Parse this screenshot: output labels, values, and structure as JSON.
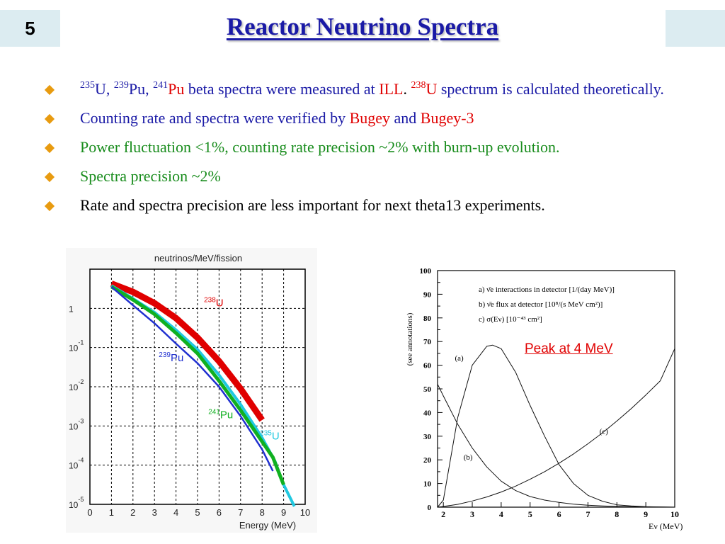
{
  "slide": {
    "number": "5",
    "title": "Reactor Neutrino Spectra"
  },
  "bullets": {
    "b1": {
      "sup1": "235",
      "t1": "U, ",
      "sup2": "239",
      "t2": "Pu, ",
      "sup3": "241",
      "t3": "Pu",
      "t4": " beta spectra were measured at ",
      "ill": "ILL",
      "t5": ". ",
      "sup4": "238",
      "t6": "U",
      "t7": " spectrum is calculated theoretically."
    },
    "b2": {
      "t1": "Counting rate and spectra were verified by ",
      "bugey": "Bugey",
      "t2": " and ",
      "bugey3": "Bugey-3"
    },
    "b3": {
      "text": "Power fluctuation <1%, counting rate precision ~2% with burn-up evolution."
    },
    "b4": {
      "text": "Spectra precision ~2%"
    },
    "b5": {
      "text": "Rate and spectra precision are less important for next theta13 experiments."
    }
  },
  "left_chart": {
    "title": "neutrinos/MeV/fission",
    "xlabel": "Energy (MeV)",
    "y_ticks": [
      {
        "base": "1",
        "exp": ""
      },
      {
        "base": "10",
        "exp": "-1"
      },
      {
        "base": "10",
        "exp": "-2"
      },
      {
        "base": "10",
        "exp": "-3"
      },
      {
        "base": "10",
        "exp": "-4"
      },
      {
        "base": "10",
        "exp": "-5"
      }
    ],
    "x_ticks": [
      "0",
      "1",
      "2",
      "3",
      "4",
      "5",
      "6",
      "7",
      "8",
      "9",
      "10"
    ],
    "labels": [
      {
        "sup": "238",
        "sym": "U",
        "color": "#e00000"
      },
      {
        "sup": "239",
        "sym": "Pu",
        "color": "#2030d0"
      },
      {
        "sup": "241",
        "sym": "Pu",
        "color": "#10b020"
      },
      {
        "sup": "235",
        "sym": "U",
        "color": "#20c8e0"
      }
    ]
  },
  "right_chart": {
    "ylabel": "(see annotations)",
    "xlabel": "Eν (MeV)",
    "y_ticks": [
      "0",
      "10",
      "20",
      "30",
      "40",
      "50",
      "60",
      "70",
      "80",
      "90",
      "100"
    ],
    "x_ticks": [
      "2",
      "3",
      "4",
      "5",
      "6",
      "7",
      "8",
      "9",
      "10"
    ],
    "legend": [
      "a) ν̄e interactions in detector [1/(day MeV)]",
      "b) ν̄e flux at detector [10⁸/(s MeV cm²)]",
      "c) σ(Eν) [10⁻⁴³ cm²]"
    ],
    "curve_labels": [
      "(a)",
      "(b)",
      "(c)"
    ],
    "annotation": "Peak at 4 MeV"
  },
  "chart_data": [
    {
      "type": "line",
      "title": "neutrinos/MeV/fission",
      "xlabel": "Energy (MeV)",
      "ylabel": "",
      "xlim": [
        0,
        10
      ],
      "ylim_log10": [
        -5,
        1
      ],
      "y_scale": "log",
      "grid": true,
      "series": [
        {
          "name": "238U",
          "color": "#e00000",
          "x": [
            1.0,
            2.0,
            3.0,
            4.0,
            5.0,
            6.0,
            7.0,
            8.0
          ],
          "y_log10": [
            0.63,
            0.42,
            0.13,
            -0.25,
            -0.75,
            -1.35,
            -2.05,
            -2.85
          ]
        },
        {
          "name": "235U",
          "color": "#20c8e0",
          "x": [
            1.0,
            2.0,
            3.0,
            4.0,
            5.0,
            6.0,
            7.0,
            8.0,
            8.6,
            9.0,
            9.5
          ],
          "y_log10": [
            0.58,
            0.25,
            -0.1,
            -0.55,
            -1.05,
            -1.7,
            -2.45,
            -3.3,
            -3.9,
            -4.5,
            -5.05
          ]
        },
        {
          "name": "241Pu",
          "color": "#10b020",
          "x": [
            1.0,
            2.0,
            3.0,
            4.0,
            5.0,
            6.0,
            7.0,
            8.0,
            8.5,
            9.0
          ],
          "y_log10": [
            0.55,
            0.22,
            -0.15,
            -0.63,
            -1.15,
            -1.85,
            -2.6,
            -3.4,
            -3.8,
            -4.5
          ]
        },
        {
          "name": "239Pu",
          "color": "#2030d0",
          "x": [
            1.0,
            2.0,
            3.0,
            4.0,
            5.0,
            6.0,
            7.0,
            8.0,
            8.5
          ],
          "y_log10": [
            0.55,
            0.08,
            -0.38,
            -0.9,
            -1.4,
            -2.0,
            -2.75,
            -3.6,
            -4.15
          ]
        }
      ]
    },
    {
      "type": "line",
      "title": "",
      "xlabel": "Eν (MeV)",
      "ylabel": "(see annotations)",
      "xlim": [
        1.8,
        10
      ],
      "ylim": [
        0,
        100
      ],
      "grid": false,
      "series": [
        {
          "name": "(a)",
          "x": [
            1.8,
            2.0,
            2.5,
            3.0,
            3.5,
            3.7,
            4.0,
            4.5,
            5.0,
            5.5,
            6.0,
            6.5,
            7.0,
            7.5,
            8.0,
            8.5,
            9.0,
            9.5,
            10.0
          ],
          "y": [
            0,
            3,
            38,
            60,
            68,
            68.5,
            67,
            57,
            43,
            30,
            18,
            10,
            5,
            2.5,
            1,
            0.5,
            0.2,
            0.1,
            0
          ]
        },
        {
          "name": "(b)",
          "x": [
            1.8,
            2.0,
            2.5,
            3.0,
            3.5,
            4.0,
            4.5,
            5.0,
            5.5,
            6.0,
            6.5,
            7.0,
            7.5,
            8.0,
            8.5,
            9.0,
            9.5,
            10.0
          ],
          "y": [
            52,
            47,
            35,
            25,
            17,
            11,
            7,
            4.5,
            3,
            2,
            1.3,
            0.8,
            0.5,
            0.3,
            0.2,
            0.1,
            0.05,
            0
          ]
        },
        {
          "name": "(c)",
          "x": [
            1.8,
            2.0,
            2.5,
            3.0,
            3.5,
            4.0,
            4.5,
            5.0,
            5.5,
            6.0,
            6.5,
            7.0,
            7.5,
            8.0,
            8.5,
            9.0,
            9.5,
            10.0
          ],
          "y": [
            0,
            0.3,
            1.2,
            2.6,
            4.3,
            6.4,
            8.9,
            11.8,
            15,
            18.6,
            22.5,
            26.8,
            31.4,
            36.4,
            41.7,
            47.4,
            53.4,
            67
          ]
        }
      ]
    }
  ]
}
